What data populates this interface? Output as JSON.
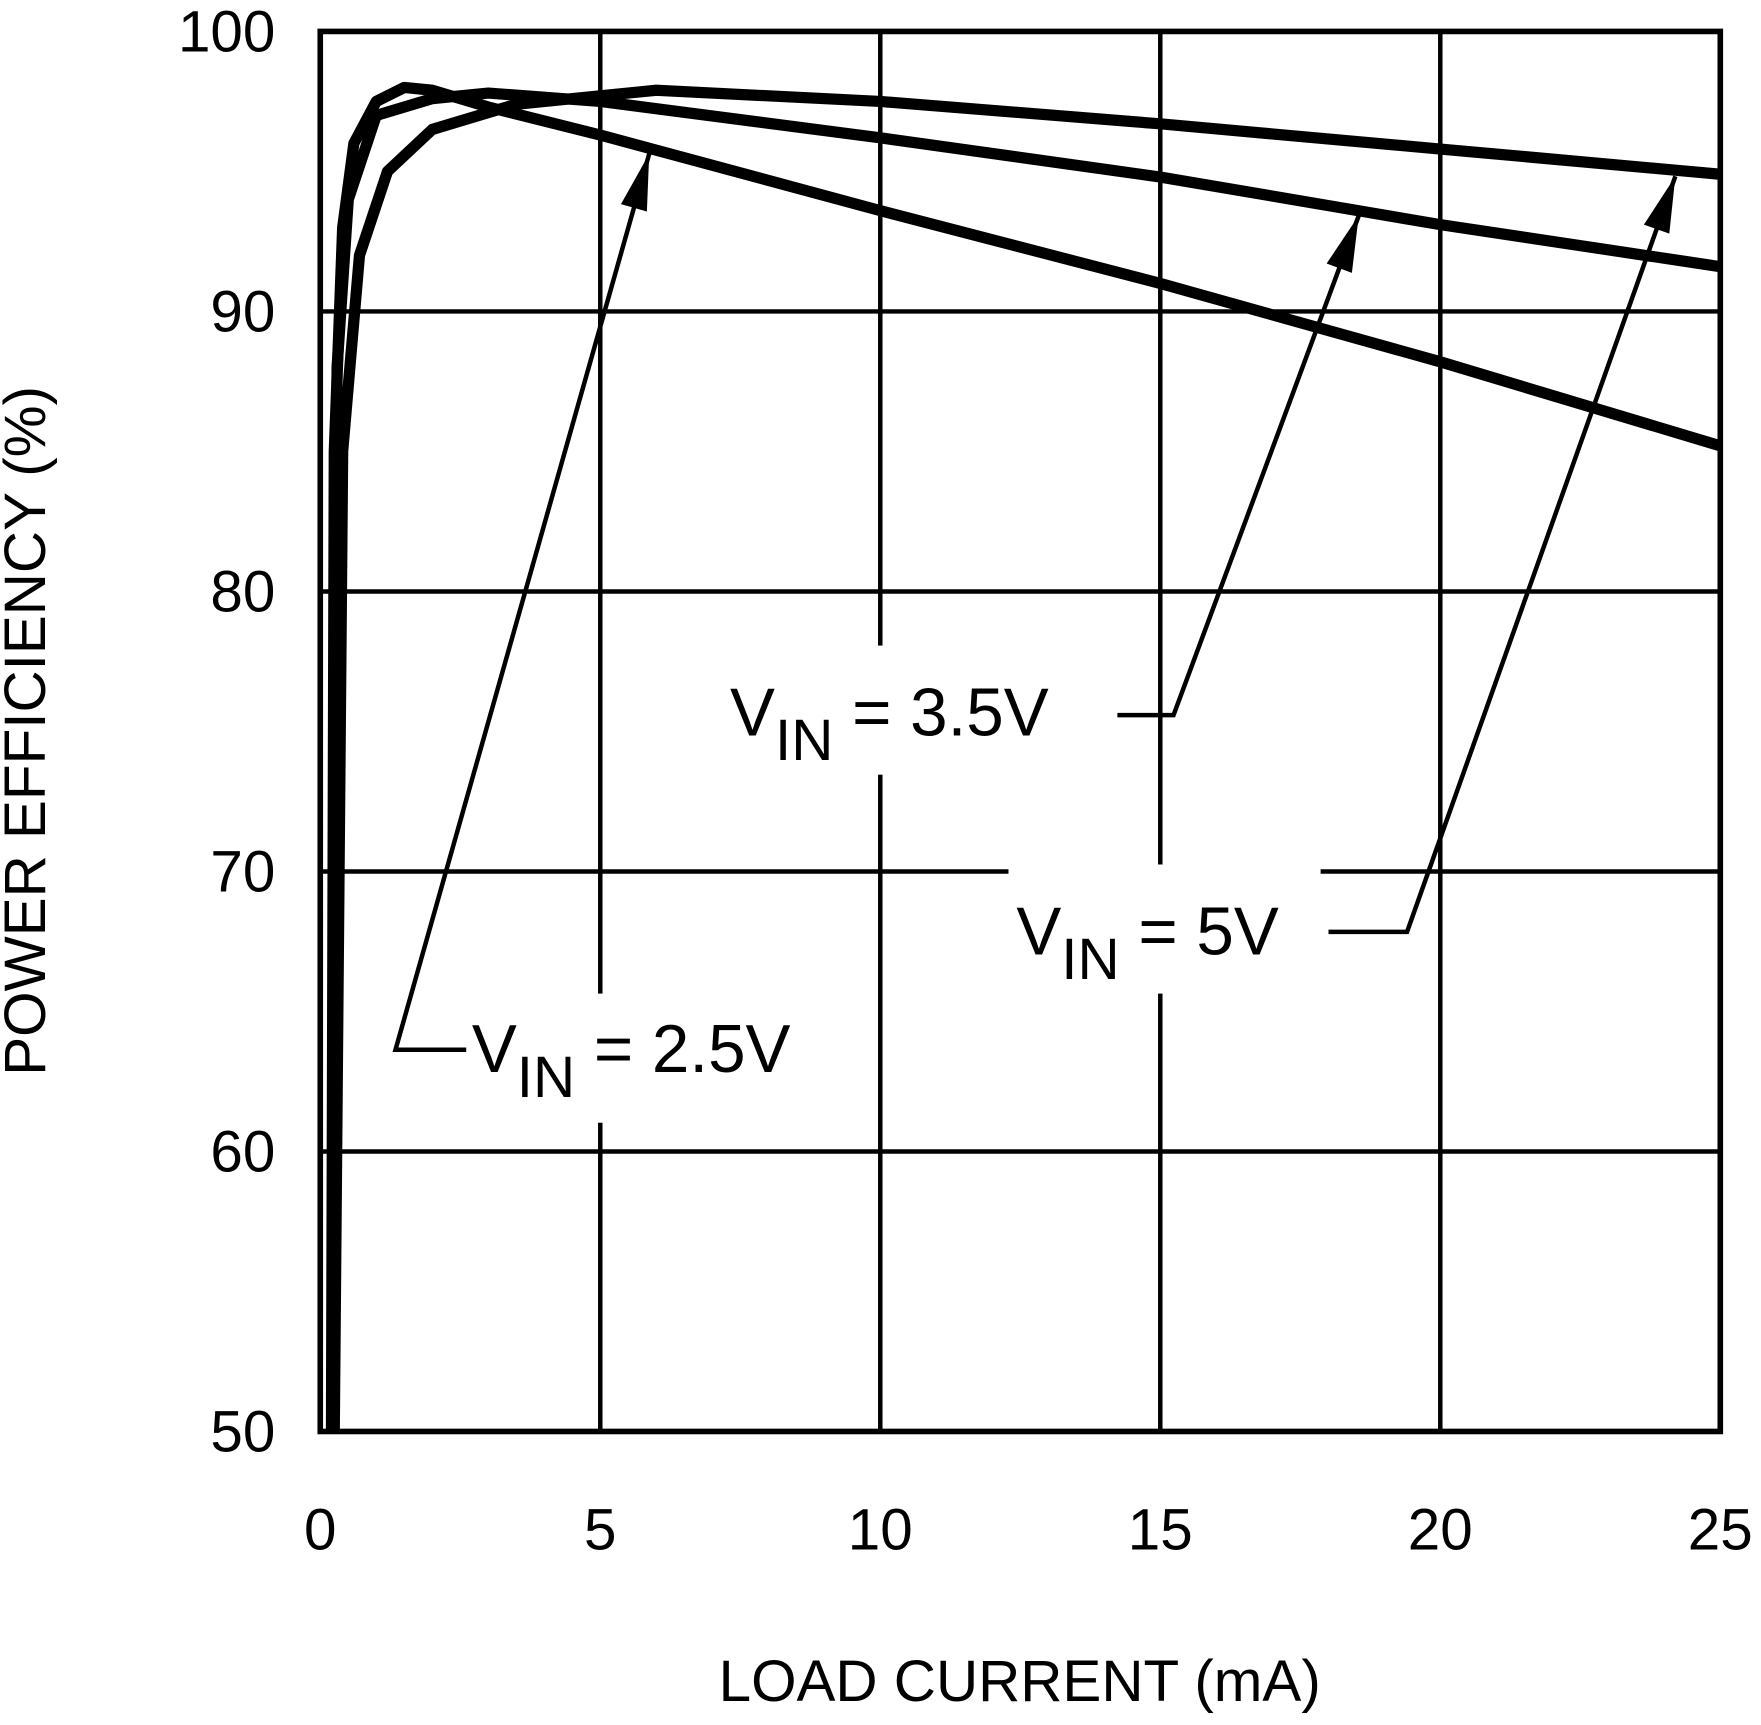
{
  "chart_data": {
    "type": "line",
    "xlabel": "LOAD CURRENT (mA)",
    "ylabel": "POWER EFFICIENCY (%)",
    "xlim": [
      0,
      25
    ],
    "xticks": [
      0,
      5,
      10,
      15,
      20,
      25
    ],
    "ylim": [
      50,
      100
    ],
    "yticks": [
      50,
      60,
      70,
      80,
      90,
      100
    ],
    "grid": true,
    "series": [
      {
        "name": "2.5V",
        "color": "#000000",
        "x": [
          0.2,
          0.25,
          0.4,
          0.6,
          1,
          1.5,
          2,
          3,
          5,
          10,
          15,
          20,
          25
        ],
        "values": [
          50,
          85,
          93,
          96,
          97.5,
          98,
          97.9,
          97.3,
          96.3,
          93.6,
          91,
          88.2,
          85.2
        ]
      },
      {
        "name": "3.5V",
        "color": "#000000",
        "x": [
          0.22,
          0.3,
          0.5,
          1,
          2,
          3,
          5,
          10,
          15,
          20,
          25
        ],
        "values": [
          50,
          88,
          94,
          97,
          97.6,
          97.8,
          97.5,
          96.2,
          94.8,
          93.1,
          91.6
        ]
      },
      {
        "name": "5V",
        "color": "#000000",
        "x": [
          0.25,
          0.4,
          0.7,
          1.2,
          2,
          3.5,
          6,
          10,
          15,
          20,
          25
        ],
        "values": [
          50,
          85,
          92,
          95,
          96.5,
          97.4,
          97.9,
          97.5,
          96.7,
          95.8,
          94.9
        ]
      }
    ],
    "annotations": [
      {
        "main": "V",
        "sub": "IN",
        "tail": " = 2.5V"
      },
      {
        "main": "V",
        "sub": "IN",
        "tail": " = 3.5V"
      },
      {
        "main": "V",
        "sub": "IN",
        "tail": " = 5V"
      }
    ]
  }
}
